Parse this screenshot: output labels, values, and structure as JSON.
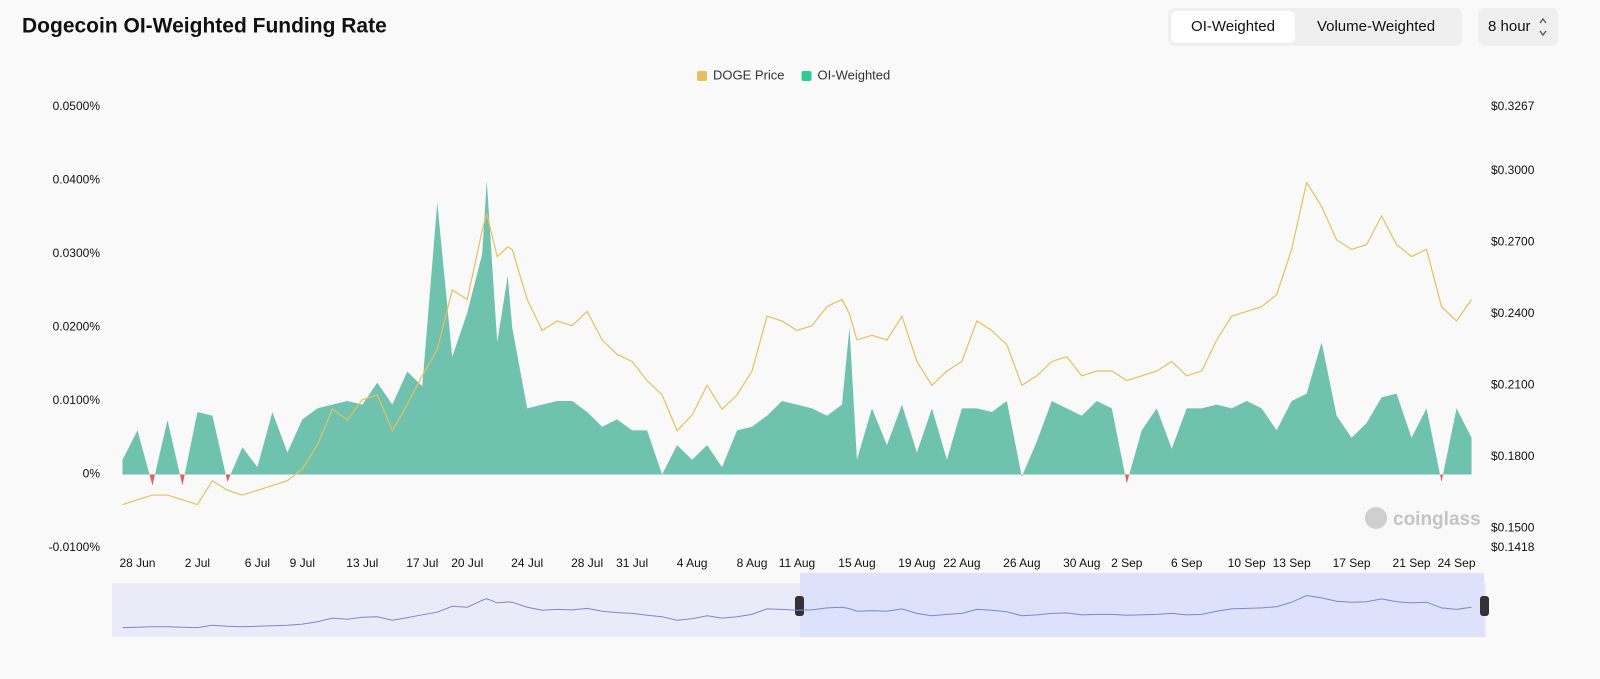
{
  "chart_data": {
    "type": "line",
    "title": "Dogecoin OI-Weighted Funding Rate",
    "controls": {
      "tabs": [
        "OI-Weighted",
        "Volume-Weighted"
      ],
      "interval": "8 hour"
    },
    "watermark": "coinglass",
    "legend": "top",
    "grid": false,
    "x": [
      -1,
      0,
      1,
      2,
      3,
      4,
      5,
      6,
      7,
      8,
      9,
      10,
      11,
      12,
      13,
      14,
      15,
      16,
      17,
      18,
      19,
      20,
      21,
      22,
      23,
      23.3,
      24,
      24.7,
      25,
      26,
      27,
      28,
      29,
      30,
      31,
      32,
      33,
      34,
      35,
      36,
      37,
      38,
      39,
      40,
      41,
      42,
      43,
      44,
      45,
      46,
      47,
      47.5,
      48,
      49,
      50,
      51,
      52,
      53,
      54,
      55,
      56,
      57,
      58,
      59,
      60,
      61,
      62,
      63,
      64,
      65,
      66,
      67,
      68,
      69,
      70,
      71,
      72,
      73,
      74,
      75,
      76,
      77,
      78,
      79,
      80,
      81,
      82,
      83,
      84,
      85,
      86,
      87,
      88,
      89
    ],
    "xlim": [
      -1.7,
      89.7
    ],
    "xticks": [
      {
        "value": 0,
        "label": "28 Jun"
      },
      {
        "value": 4,
        "label": "2 Jul"
      },
      {
        "value": 8,
        "label": "6 Jul"
      },
      {
        "value": 11,
        "label": "9 Jul"
      },
      {
        "value": 15,
        "label": "13 Jul"
      },
      {
        "value": 19,
        "label": "17 Jul"
      },
      {
        "value": 22,
        "label": "20 Jul"
      },
      {
        "value": 26,
        "label": "24 Jul"
      },
      {
        "value": 30,
        "label": "28 Jul"
      },
      {
        "value": 33,
        "label": "31 Jul"
      },
      {
        "value": 37,
        "label": "4 Aug"
      },
      {
        "value": 41,
        "label": "8 Aug"
      },
      {
        "value": 44,
        "label": "11 Aug"
      },
      {
        "value": 48,
        "label": "15 Aug"
      },
      {
        "value": 52,
        "label": "19 Aug"
      },
      {
        "value": 55,
        "label": "22 Aug"
      },
      {
        "value": 59,
        "label": "26 Aug"
      },
      {
        "value": 63,
        "label": "30 Aug"
      },
      {
        "value": 66,
        "label": "2 Sep"
      },
      {
        "value": 70,
        "label": "6 Sep"
      },
      {
        "value": 74,
        "label": "10 Sep"
      },
      {
        "value": 77,
        "label": "13 Sep"
      },
      {
        "value": 81,
        "label": "17 Sep"
      },
      {
        "value": 85,
        "label": "21 Sep"
      },
      {
        "value": 88,
        "label": "24 Sep"
      }
    ],
    "ylim": [
      -0.01,
      0.05
    ],
    "yticks": [
      {
        "value": -0.01,
        "label": "-0.0100%"
      },
      {
        "value": 0,
        "label": "0%"
      },
      {
        "value": 0.01,
        "label": "0.0100%"
      },
      {
        "value": 0.02,
        "label": "0.0200%"
      },
      {
        "value": 0.03,
        "label": "0.0300%"
      },
      {
        "value": 0.04,
        "label": "0.0400%"
      },
      {
        "value": 0.05,
        "label": "0.0500%"
      }
    ],
    "y2lim": [
      0.1418,
      0.3267
    ],
    "y2ticks": [
      {
        "value": 0.1418,
        "label": "$0.1418"
      },
      {
        "value": 0.15,
        "label": "$0.1500"
      },
      {
        "value": 0.18,
        "label": "$0.1800"
      },
      {
        "value": 0.21,
        "label": "$0.2100"
      },
      {
        "value": 0.24,
        "label": "$0.2400"
      },
      {
        "value": 0.27,
        "label": "$0.2700"
      },
      {
        "value": 0.3,
        "label": "$0.3000"
      },
      {
        "value": 0.3267,
        "label": "$0.3267"
      }
    ],
    "series": [
      {
        "name": "DOGE Price",
        "color": "#e6bf62",
        "axis": "y2",
        "values": [
          0.16,
          0.162,
          0.164,
          0.164,
          0.162,
          0.16,
          0.17,
          0.166,
          0.164,
          0.166,
          0.168,
          0.17,
          0.175,
          0.185,
          0.2,
          0.1955,
          0.204,
          0.206,
          0.191,
          0.202,
          0.214,
          0.225,
          0.25,
          0.246,
          0.275,
          0.282,
          0.264,
          0.268,
          0.267,
          0.246,
          0.233,
          0.237,
          0.235,
          0.241,
          0.229,
          0.223,
          0.22,
          0.212,
          0.206,
          0.191,
          0.1975,
          0.21,
          0.2,
          0.206,
          0.216,
          0.239,
          0.237,
          0.233,
          0.235,
          0.243,
          0.246,
          0.24,
          0.229,
          0.231,
          0.229,
          0.239,
          0.22,
          0.21,
          0.216,
          0.22,
          0.237,
          0.233,
          0.227,
          0.21,
          0.214,
          0.22,
          0.222,
          0.214,
          0.216,
          0.216,
          0.212,
          0.214,
          0.216,
          0.22,
          0.214,
          0.216,
          0.229,
          0.239,
          0.241,
          0.243,
          0.248,
          0.267,
          0.295,
          0.285,
          0.271,
          0.267,
          0.269,
          0.281,
          0.269,
          0.264,
          0.267,
          0.243,
          0.237,
          0.246
        ]
      },
      {
        "name": "OI-Weighted",
        "color": "#2ecc8f",
        "fill": "#6fc2ad",
        "negative_color": "#e0605f",
        "values": [
          0.002,
          0.006,
          -0.0015,
          0.0074,
          -0.0015,
          0.0085,
          0.008,
          -0.001,
          0.0037,
          0.001,
          0.0085,
          0.003,
          0.0075,
          0.009,
          0.0095,
          0.01,
          0.0095,
          0.0125,
          0.0095,
          0.014,
          0.012,
          0.037,
          0.016,
          0.022,
          0.03,
          0.04,
          0.018,
          0.027,
          0.02,
          0.009,
          0.0095,
          0.01,
          0.01,
          0.0085,
          0.0065,
          0.0075,
          0.006,
          0.006,
          0,
          0.004,
          0.002,
          0.004,
          0.001,
          0.006,
          0.0065,
          0.008,
          0.01,
          0.0095,
          0.009,
          0.008,
          0.0095,
          0.02,
          0.002,
          0.009,
          0.004,
          0.0095,
          0.003,
          0.009,
          0.002,
          0.009,
          0.009,
          0.0085,
          0.01,
          -0.0003,
          0.0045,
          0.01,
          0.009,
          0.008,
          0.01,
          0.009,
          -0.0012,
          0.006,
          0.009,
          0.0035,
          0.009,
          0.009,
          0.0095,
          0.009,
          0.01,
          0.009,
          0.006,
          0.01,
          0.011,
          0.018,
          0.008,
          0.005,
          0.007,
          0.0105,
          0.011,
          0.005,
          0.009,
          -0.001,
          0.009,
          0.005
        ]
      }
    ]
  }
}
